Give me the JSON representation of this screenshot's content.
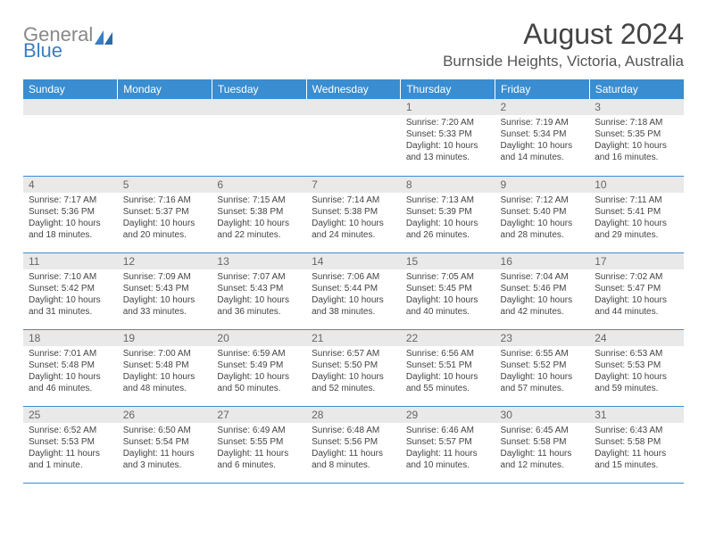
{
  "brand": {
    "line1": "General",
    "line2": "Blue"
  },
  "title": "August 2024",
  "location": "Burnside Heights, Victoria, Australia",
  "colors": {
    "header_bg": "#3a8dd0",
    "header_text": "#ffffff",
    "daynum_bg": "#e9e9e9",
    "border": "#3a8dd0",
    "brand_gray": "#888888",
    "brand_blue": "#3a7fc4"
  },
  "dayNames": [
    "Sunday",
    "Monday",
    "Tuesday",
    "Wednesday",
    "Thursday",
    "Friday",
    "Saturday"
  ],
  "weeks": [
    [
      null,
      null,
      null,
      null,
      {
        "n": "1",
        "sr": "7:20 AM",
        "ss": "5:33 PM",
        "dl": "10 hours and 13 minutes."
      },
      {
        "n": "2",
        "sr": "7:19 AM",
        "ss": "5:34 PM",
        "dl": "10 hours and 14 minutes."
      },
      {
        "n": "3",
        "sr": "7:18 AM",
        "ss": "5:35 PM",
        "dl": "10 hours and 16 minutes."
      }
    ],
    [
      {
        "n": "4",
        "sr": "7:17 AM",
        "ss": "5:36 PM",
        "dl": "10 hours and 18 minutes."
      },
      {
        "n": "5",
        "sr": "7:16 AM",
        "ss": "5:37 PM",
        "dl": "10 hours and 20 minutes."
      },
      {
        "n": "6",
        "sr": "7:15 AM",
        "ss": "5:38 PM",
        "dl": "10 hours and 22 minutes."
      },
      {
        "n": "7",
        "sr": "7:14 AM",
        "ss": "5:38 PM",
        "dl": "10 hours and 24 minutes."
      },
      {
        "n": "8",
        "sr": "7:13 AM",
        "ss": "5:39 PM",
        "dl": "10 hours and 26 minutes."
      },
      {
        "n": "9",
        "sr": "7:12 AM",
        "ss": "5:40 PM",
        "dl": "10 hours and 28 minutes."
      },
      {
        "n": "10",
        "sr": "7:11 AM",
        "ss": "5:41 PM",
        "dl": "10 hours and 29 minutes."
      }
    ],
    [
      {
        "n": "11",
        "sr": "7:10 AM",
        "ss": "5:42 PM",
        "dl": "10 hours and 31 minutes."
      },
      {
        "n": "12",
        "sr": "7:09 AM",
        "ss": "5:43 PM",
        "dl": "10 hours and 33 minutes."
      },
      {
        "n": "13",
        "sr": "7:07 AM",
        "ss": "5:43 PM",
        "dl": "10 hours and 36 minutes."
      },
      {
        "n": "14",
        "sr": "7:06 AM",
        "ss": "5:44 PM",
        "dl": "10 hours and 38 minutes."
      },
      {
        "n": "15",
        "sr": "7:05 AM",
        "ss": "5:45 PM",
        "dl": "10 hours and 40 minutes."
      },
      {
        "n": "16",
        "sr": "7:04 AM",
        "ss": "5:46 PM",
        "dl": "10 hours and 42 minutes."
      },
      {
        "n": "17",
        "sr": "7:02 AM",
        "ss": "5:47 PM",
        "dl": "10 hours and 44 minutes."
      }
    ],
    [
      {
        "n": "18",
        "sr": "7:01 AM",
        "ss": "5:48 PM",
        "dl": "10 hours and 46 minutes."
      },
      {
        "n": "19",
        "sr": "7:00 AM",
        "ss": "5:48 PM",
        "dl": "10 hours and 48 minutes."
      },
      {
        "n": "20",
        "sr": "6:59 AM",
        "ss": "5:49 PM",
        "dl": "10 hours and 50 minutes."
      },
      {
        "n": "21",
        "sr": "6:57 AM",
        "ss": "5:50 PM",
        "dl": "10 hours and 52 minutes."
      },
      {
        "n": "22",
        "sr": "6:56 AM",
        "ss": "5:51 PM",
        "dl": "10 hours and 55 minutes."
      },
      {
        "n": "23",
        "sr": "6:55 AM",
        "ss": "5:52 PM",
        "dl": "10 hours and 57 minutes."
      },
      {
        "n": "24",
        "sr": "6:53 AM",
        "ss": "5:53 PM",
        "dl": "10 hours and 59 minutes."
      }
    ],
    [
      {
        "n": "25",
        "sr": "6:52 AM",
        "ss": "5:53 PM",
        "dl": "11 hours and 1 minute."
      },
      {
        "n": "26",
        "sr": "6:50 AM",
        "ss": "5:54 PM",
        "dl": "11 hours and 3 minutes."
      },
      {
        "n": "27",
        "sr": "6:49 AM",
        "ss": "5:55 PM",
        "dl": "11 hours and 6 minutes."
      },
      {
        "n": "28",
        "sr": "6:48 AM",
        "ss": "5:56 PM",
        "dl": "11 hours and 8 minutes."
      },
      {
        "n": "29",
        "sr": "6:46 AM",
        "ss": "5:57 PM",
        "dl": "11 hours and 10 minutes."
      },
      {
        "n": "30",
        "sr": "6:45 AM",
        "ss": "5:58 PM",
        "dl": "11 hours and 12 minutes."
      },
      {
        "n": "31",
        "sr": "6:43 AM",
        "ss": "5:58 PM",
        "dl": "11 hours and 15 minutes."
      }
    ]
  ],
  "labels": {
    "sunrise": "Sunrise:",
    "sunset": "Sunset:",
    "daylight": "Daylight:"
  }
}
